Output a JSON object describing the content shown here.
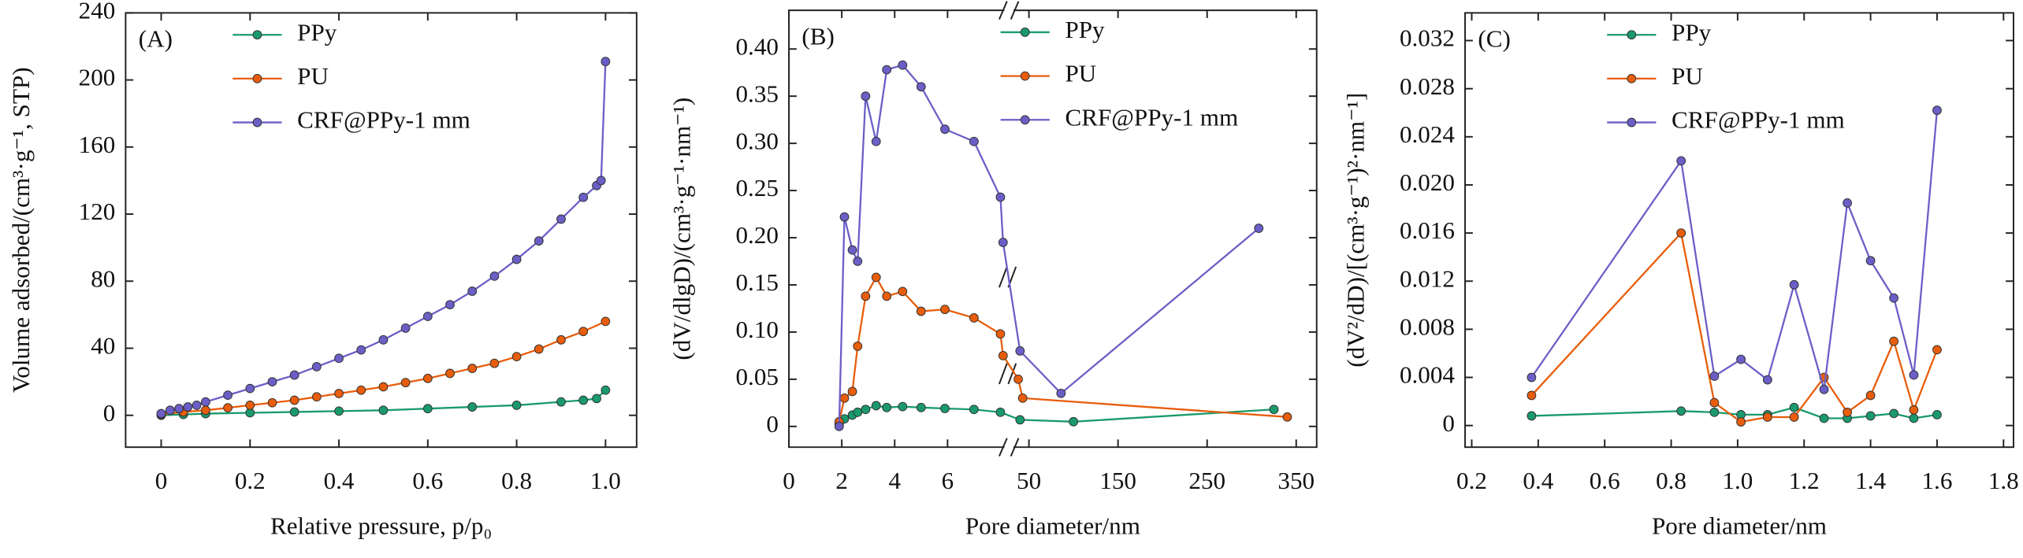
{
  "chart_data": [
    {
      "type": "line",
      "panel_label": "(A)",
      "xlabel": "Relative pressure, p/p₀",
      "ylabel": "Volume adsorbed/(cm³·g⁻¹, STP)",
      "xlim": [
        -0.08,
        1.07
      ],
      "ylim": [
        -19,
        240
      ],
      "xticks": [
        0,
        0.2,
        0.4,
        0.6,
        0.8,
        {
          "value": 1,
          "label": "1.0"
        }
      ],
      "yticks": [
        0,
        40,
        80,
        120,
        160,
        200,
        240
      ],
      "series": [
        {
          "name": "PPy",
          "color": "#1a9a6c",
          "x": [
            0,
            0.05,
            0.1,
            0.2,
            0.3,
            0.4,
            0.5,
            0.6,
            0.7,
            0.8,
            0.9,
            0.95,
            0.98,
            1.0
          ],
          "values": [
            0,
            0.5,
            1,
            1.5,
            2,
            2.5,
            3,
            4,
            5,
            6,
            8,
            9,
            10,
            15
          ]
        },
        {
          "name": "PU",
          "color": "#e85d0c",
          "x": [
            0,
            0.05,
            0.1,
            0.15,
            0.2,
            0.25,
            0.3,
            0.35,
            0.4,
            0.45,
            0.5,
            0.55,
            0.6,
            0.65,
            0.7,
            0.75,
            0.8,
            0.85,
            0.9,
            0.95,
            1.0
          ],
          "values": [
            0.5,
            2,
            3,
            4.5,
            6,
            7.5,
            9,
            11,
            13,
            15,
            17,
            19.5,
            22,
            25,
            28,
            31,
            35,
            39.5,
            45,
            50,
            56
          ]
        },
        {
          "name": "CRF@PPy-1 mm",
          "color": "#6b5fc7",
          "x": [
            0,
            0.02,
            0.04,
            0.06,
            0.08,
            0.1,
            0.15,
            0.2,
            0.25,
            0.3,
            0.35,
            0.4,
            0.45,
            0.5,
            0.55,
            0.6,
            0.65,
            0.7,
            0.75,
            0.8,
            0.85,
            0.9,
            0.95,
            0.98,
            0.99,
            1.0
          ],
          "values": [
            1,
            3,
            4,
            5,
            6,
            8,
            12,
            16,
            20,
            24,
            29,
            34,
            39,
            45,
            52,
            59,
            66,
            74,
            83,
            93,
            104,
            117,
            130,
            137,
            140,
            211
          ]
        }
      ]
    },
    {
      "type": "line",
      "panel_label": "(B)",
      "xlabel": "Pore diameter/nm",
      "ylabel": "(dV/dlgD)/(cm³·g⁻¹·nm⁻¹)",
      "xlim": [
        0,
        373
      ],
      "xbreak": [
        8.15,
        32.6
      ],
      "ylim": [
        -0.022,
        0.441
      ],
      "xticks": [
        0,
        2,
        4,
        6,
        50,
        150,
        250,
        350
      ],
      "yticks": [
        0,
        0.05,
        {
          "value": 0.1,
          "label": "0.10"
        },
        0.15,
        {
          "value": 0.2,
          "label": "0.20"
        },
        0.25,
        {
          "value": 0.3,
          "label": "0.30"
        },
        0.35,
        {
          "value": 0.4,
          "label": "0.40"
        }
      ],
      "series": [
        {
          "name": "PPy",
          "color": "#1a9a6c",
          "x": [
            1.9,
            2.1,
            2.4,
            2.6,
            2.9,
            3.3,
            3.7,
            4.3,
            5,
            5.9,
            7,
            8,
            40,
            100,
            325
          ],
          "values": [
            0.002,
            0.008,
            0.012,
            0.015,
            0.018,
            0.022,
            0.02,
            0.021,
            0.02,
            0.019,
            0.018,
            0.015,
            0.007,
            0.005,
            0.018
          ]
        },
        {
          "name": "PU",
          "color": "#e85d0c",
          "x": [
            1.9,
            2.1,
            2.4,
            2.6,
            2.9,
            3.3,
            3.7,
            4.3,
            5,
            5.9,
            7,
            8,
            8.1,
            38,
            43,
            340
          ],
          "values": [
            0.005,
            0.03,
            0.037,
            0.085,
            0.138,
            0.158,
            0.138,
            0.143,
            0.122,
            0.124,
            0.115,
            0.098,
            0.075,
            0.05,
            0.03,
            0.01
          ]
        },
        {
          "name": "CRF@PPy-1 mm",
          "color": "#6b5fc7",
          "x": [
            1.9,
            2.1,
            2.4,
            2.6,
            2.9,
            3.3,
            3.7,
            4.3,
            5,
            5.9,
            7,
            8,
            8.1,
            40,
            86,
            308
          ],
          "values": [
            0,
            0.222,
            0.187,
            0.175,
            0.35,
            0.302,
            0.378,
            0.383,
            0.36,
            0.315,
            0.302,
            0.243,
            0.195,
            0.08,
            0.035,
            0.21
          ]
        }
      ]
    },
    {
      "type": "line",
      "panel_label": "(C)",
      "xlabel": "Pore diameter/nm",
      "ylabel": "(dV²/dD)/[(cm³·g⁻¹)²·nm⁻¹]",
      "xlim": [
        0.18,
        1.83
      ],
      "ylim": [
        -0.0018,
        0.0343
      ],
      "xticks": [
        0.2,
        0.4,
        0.6,
        0.8,
        {
          "value": 1,
          "label": "1.0"
        },
        1.2,
        1.4,
        1.6,
        1.8
      ],
      "yticks": [
        0,
        0.004,
        0.008,
        0.012,
        0.016,
        {
          "value": 0.02,
          "label": "0.020"
        },
        0.024,
        0.028,
        0.032
      ],
      "series": [
        {
          "name": "PPy",
          "color": "#1a9a6c",
          "x": [
            0.38,
            0.83,
            0.93,
            1.01,
            1.09,
            1.17,
            1.26,
            1.33,
            1.4,
            1.47,
            1.53,
            1.6
          ],
          "values": [
            0.0008,
            0.0012,
            0.0011,
            0.0009,
            0.0009,
            0.0015,
            0.0006,
            0.0006,
            0.0008,
            0.001,
            0.0006,
            0.0009
          ]
        },
        {
          "name": "PU",
          "color": "#e85d0c",
          "x": [
            0.38,
            0.83,
            0.93,
            1.01,
            1.09,
            1.17,
            1.26,
            1.33,
            1.4,
            1.47,
            1.53,
            1.6
          ],
          "values": [
            0.0025,
            0.016,
            0.0019,
            0.0003,
            0.0007,
            0.0007,
            0.004,
            0.0011,
            0.0025,
            0.007,
            0.0013,
            0.0063
          ]
        },
        {
          "name": "CRF@PPy-1 mm",
          "color": "#6b5fc7",
          "x": [
            0.38,
            0.83,
            0.93,
            1.01,
            1.09,
            1.17,
            1.26,
            1.33,
            1.4,
            1.47,
            1.53,
            1.6
          ],
          "values": [
            0.004,
            0.022,
            0.0041,
            0.0055,
            0.0038,
            0.0117,
            0.003,
            0.0185,
            0.0137,
            0.0106,
            0.0042,
            0.0262
          ]
        }
      ]
    }
  ]
}
